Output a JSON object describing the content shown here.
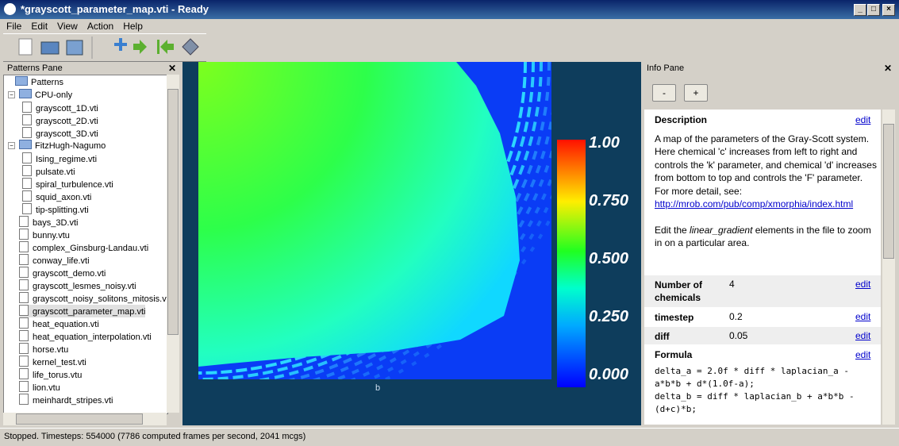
{
  "window": {
    "title": "*grayscott_parameter_map.vti - Ready"
  },
  "menu": [
    "File",
    "Edit",
    "View",
    "Action",
    "Help"
  ],
  "patterns_pane": {
    "title": "Patterns Pane",
    "tree": {
      "root": "Patterns",
      "folders": [
        {
          "label": "CPU-only",
          "files": [
            "grayscott_1D.vti",
            "grayscott_2D.vti",
            "grayscott_3D.vti"
          ]
        },
        {
          "label": "FitzHugh-Nagumo",
          "files": [
            "Ising_regime.vti",
            "pulsate.vti",
            "spiral_turbulence.vti",
            "squid_axon.vti",
            "tip-splitting.vti"
          ]
        }
      ],
      "files": [
        "bays_3D.vti",
        "bunny.vtu",
        "complex_Ginsburg-Landau.vti",
        "conway_life.vti",
        "grayscott_demo.vti",
        "grayscott_lesmes_noisy.vti",
        "grayscott_noisy_solitons_mitosis.vti",
        "grayscott_parameter_map.vti",
        "heat_equation.vti",
        "heat_equation_interpolation.vti",
        "horse.vtu",
        "kernel_test.vti",
        "life_torus.vtu",
        "lion.vtu",
        "meinhardt_stripes.vti"
      ],
      "selected_file": 7
    }
  },
  "view": {
    "axis_label": "b",
    "colorbar_labels": [
      "1.00",
      "0.750",
      "0.500",
      "0.250",
      "0.000"
    ]
  },
  "info_pane": {
    "title": "Info Pane",
    "buttons": [
      "-",
      "+"
    ],
    "description": {
      "heading": "Description",
      "edit": "edit",
      "text_1": "A map of the parameters of the Gray-Scott system. Here chemical 'c' increases from left to right and controls the 'k' parameter, and chemical 'd' increases from bottom to top and controls the 'F' parameter. For more detail, see:",
      "link": "http://mrob.com/pub/comp/xmorphia/index.html",
      "text_2": "Edit the ",
      "emphasis": "linear_gradient",
      "text_3": " elements in the file to zoom in on a particular area."
    },
    "properties": [
      {
        "name": "Number of chemicals",
        "value": "4",
        "edit": "edit"
      },
      {
        "name": "timestep",
        "value": "0.2",
        "edit": "edit"
      },
      {
        "name": "diff",
        "value": "0.05",
        "edit": "edit"
      }
    ],
    "formula": {
      "heading": "Formula",
      "edit": "edit",
      "code": "delta_a = 2.0f * diff * laplacian_a - a*b*b + d*(1.0f-a);\ndelta_b = diff * laplacian_b + a*b*b - (d+c)*b;"
    }
  },
  "status_bar": "Stopped. Timesteps: 554000   (7786 computed frames per second, 2041 mcgs)"
}
